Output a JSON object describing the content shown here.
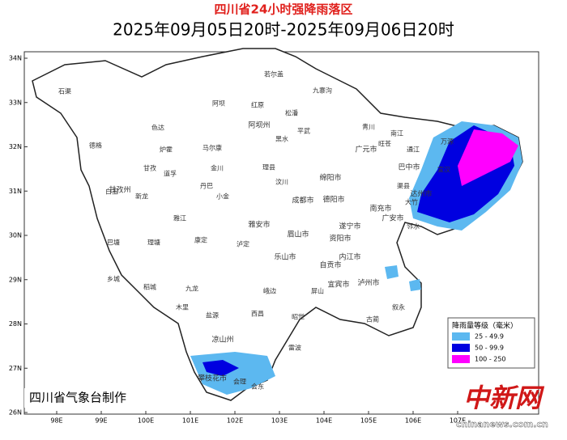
{
  "title": "四川省24小时强降雨落区",
  "subtitle": "2025年09月05日20时-2025年09月06日20时",
  "lat_ticks": [
    "34N",
    "33N",
    "32N",
    "31N",
    "30N",
    "29N",
    "28N",
    "27N",
    "26N"
  ],
  "lon_ticks": [
    "98E",
    "99E",
    "100E",
    "101E",
    "102E",
    "103E",
    "104E",
    "105E",
    "106E",
    "107E"
  ],
  "legend": {
    "title": "降雨量等级（毫米）",
    "items": [
      {
        "label": "25 - 49.9",
        "color": "#5cb8f0"
      },
      {
        "label": "50 - 99.9",
        "color": "#0000e0"
      },
      {
        "label": "100 - 250",
        "color": "#ff00ff"
      }
    ]
  },
  "places": [
    "若尔盖",
    "九寨沟",
    "石渠",
    "红原",
    "阿坝",
    "松潘",
    "德格",
    "色达",
    "马尔康",
    "黑水",
    "甘孜",
    "炉霍",
    "金川",
    "理县",
    "汶川",
    "白玉",
    "新龙",
    "道孚",
    "丹巴",
    "小金",
    "巴塘",
    "理塘",
    "雅江",
    "康定",
    "泸定",
    "乡城",
    "稻城",
    "九龙",
    "木里",
    "盐源",
    "西昌",
    "昭觉",
    "会东",
    "会理",
    "广元市",
    "巴中市",
    "达州市",
    "南充市",
    "绵阳市",
    "德阳市",
    "成都市",
    "遂宁市",
    "资阳市",
    "内江市",
    "自贡市",
    "宜宾市",
    "泸州市",
    "乐山市",
    "雅安市",
    "眉山市",
    "广安市",
    "平武",
    "青川",
    "旺苍",
    "通江",
    "南江",
    "万源",
    "宣汉",
    "大竹",
    "渠县",
    "邻水",
    "峨边",
    "雷波",
    "古蔺",
    "叙永",
    "屏山",
    "凉山州",
    "攀枝花市",
    "甘孜州",
    "阿坝州"
  ],
  "footer": "四川省气象台制作",
  "watermark": "中新网",
  "watermark_url": "chinanews.com.cn"
}
